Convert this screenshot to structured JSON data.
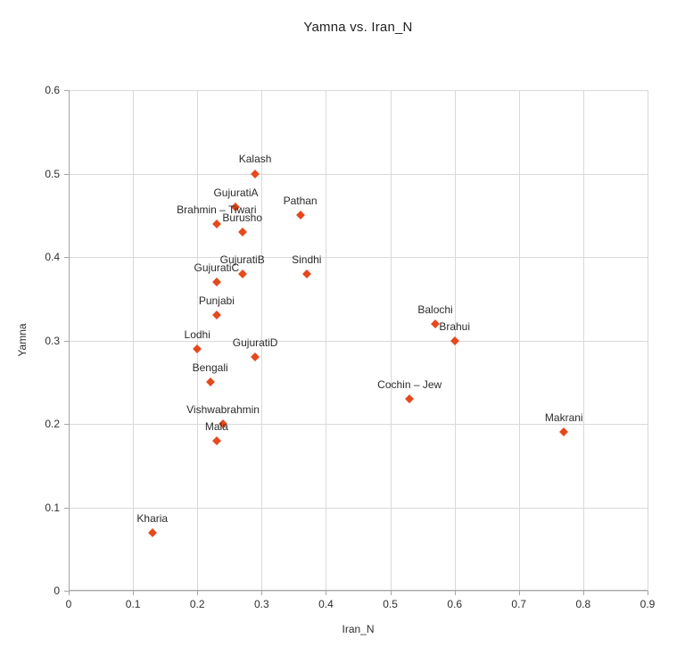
{
  "chart_data": {
    "type": "scatter",
    "title": "Yamna vs. Iran_N",
    "xlabel": "Iran_N",
    "ylabel": "Yamna",
    "xlim": [
      0,
      0.9
    ],
    "ylim": [
      0,
      0.6
    ],
    "x_ticks": [
      "0",
      "0.1",
      "0.2",
      "0.3",
      "0.4",
      "0.5",
      "0.6",
      "0.7",
      "0.8",
      "0.9"
    ],
    "y_ticks": [
      "0",
      "0.1",
      "0.2",
      "0.3",
      "0.4",
      "0.5",
      "0.6"
    ],
    "grid": true,
    "legend": "none",
    "marker": "diamond",
    "points": [
      {
        "label": "Kalash",
        "x": 0.29,
        "y": 0.5
      },
      {
        "label": "GujuratiA",
        "x": 0.26,
        "y": 0.46
      },
      {
        "label": "Pathan",
        "x": 0.36,
        "y": 0.45
      },
      {
        "label": "Brahmin – Tiwari",
        "x": 0.23,
        "y": 0.44
      },
      {
        "label": "Burusho",
        "x": 0.27,
        "y": 0.43
      },
      {
        "label": "GujuratiB",
        "x": 0.27,
        "y": 0.38
      },
      {
        "label": "Sindhi",
        "x": 0.37,
        "y": 0.38
      },
      {
        "label": "GujuratiC",
        "x": 0.23,
        "y": 0.37
      },
      {
        "label": "Punjabi",
        "x": 0.23,
        "y": 0.33
      },
      {
        "label": "Balochi",
        "x": 0.57,
        "y": 0.32
      },
      {
        "label": "Brahui",
        "x": 0.6,
        "y": 0.3
      },
      {
        "label": "Lodhi",
        "x": 0.2,
        "y": 0.29
      },
      {
        "label": "GujuratiD",
        "x": 0.29,
        "y": 0.28
      },
      {
        "label": "Bengali",
        "x": 0.22,
        "y": 0.25
      },
      {
        "label": "Cochin – Jew",
        "x": 0.53,
        "y": 0.23
      },
      {
        "label": "Vishwabrahmin",
        "x": 0.24,
        "y": 0.2
      },
      {
        "label": "Mala",
        "x": 0.23,
        "y": 0.18
      },
      {
        "label": "Makrani",
        "x": 0.77,
        "y": 0.19
      },
      {
        "label": "Kharia",
        "x": 0.13,
        "y": 0.07
      }
    ]
  },
  "colors": {
    "marker": "#e5491d",
    "grid": "#d9d9d9",
    "axis": "#a6a6a6",
    "text": "#2e2e2e",
    "background": "#ffffff"
  }
}
